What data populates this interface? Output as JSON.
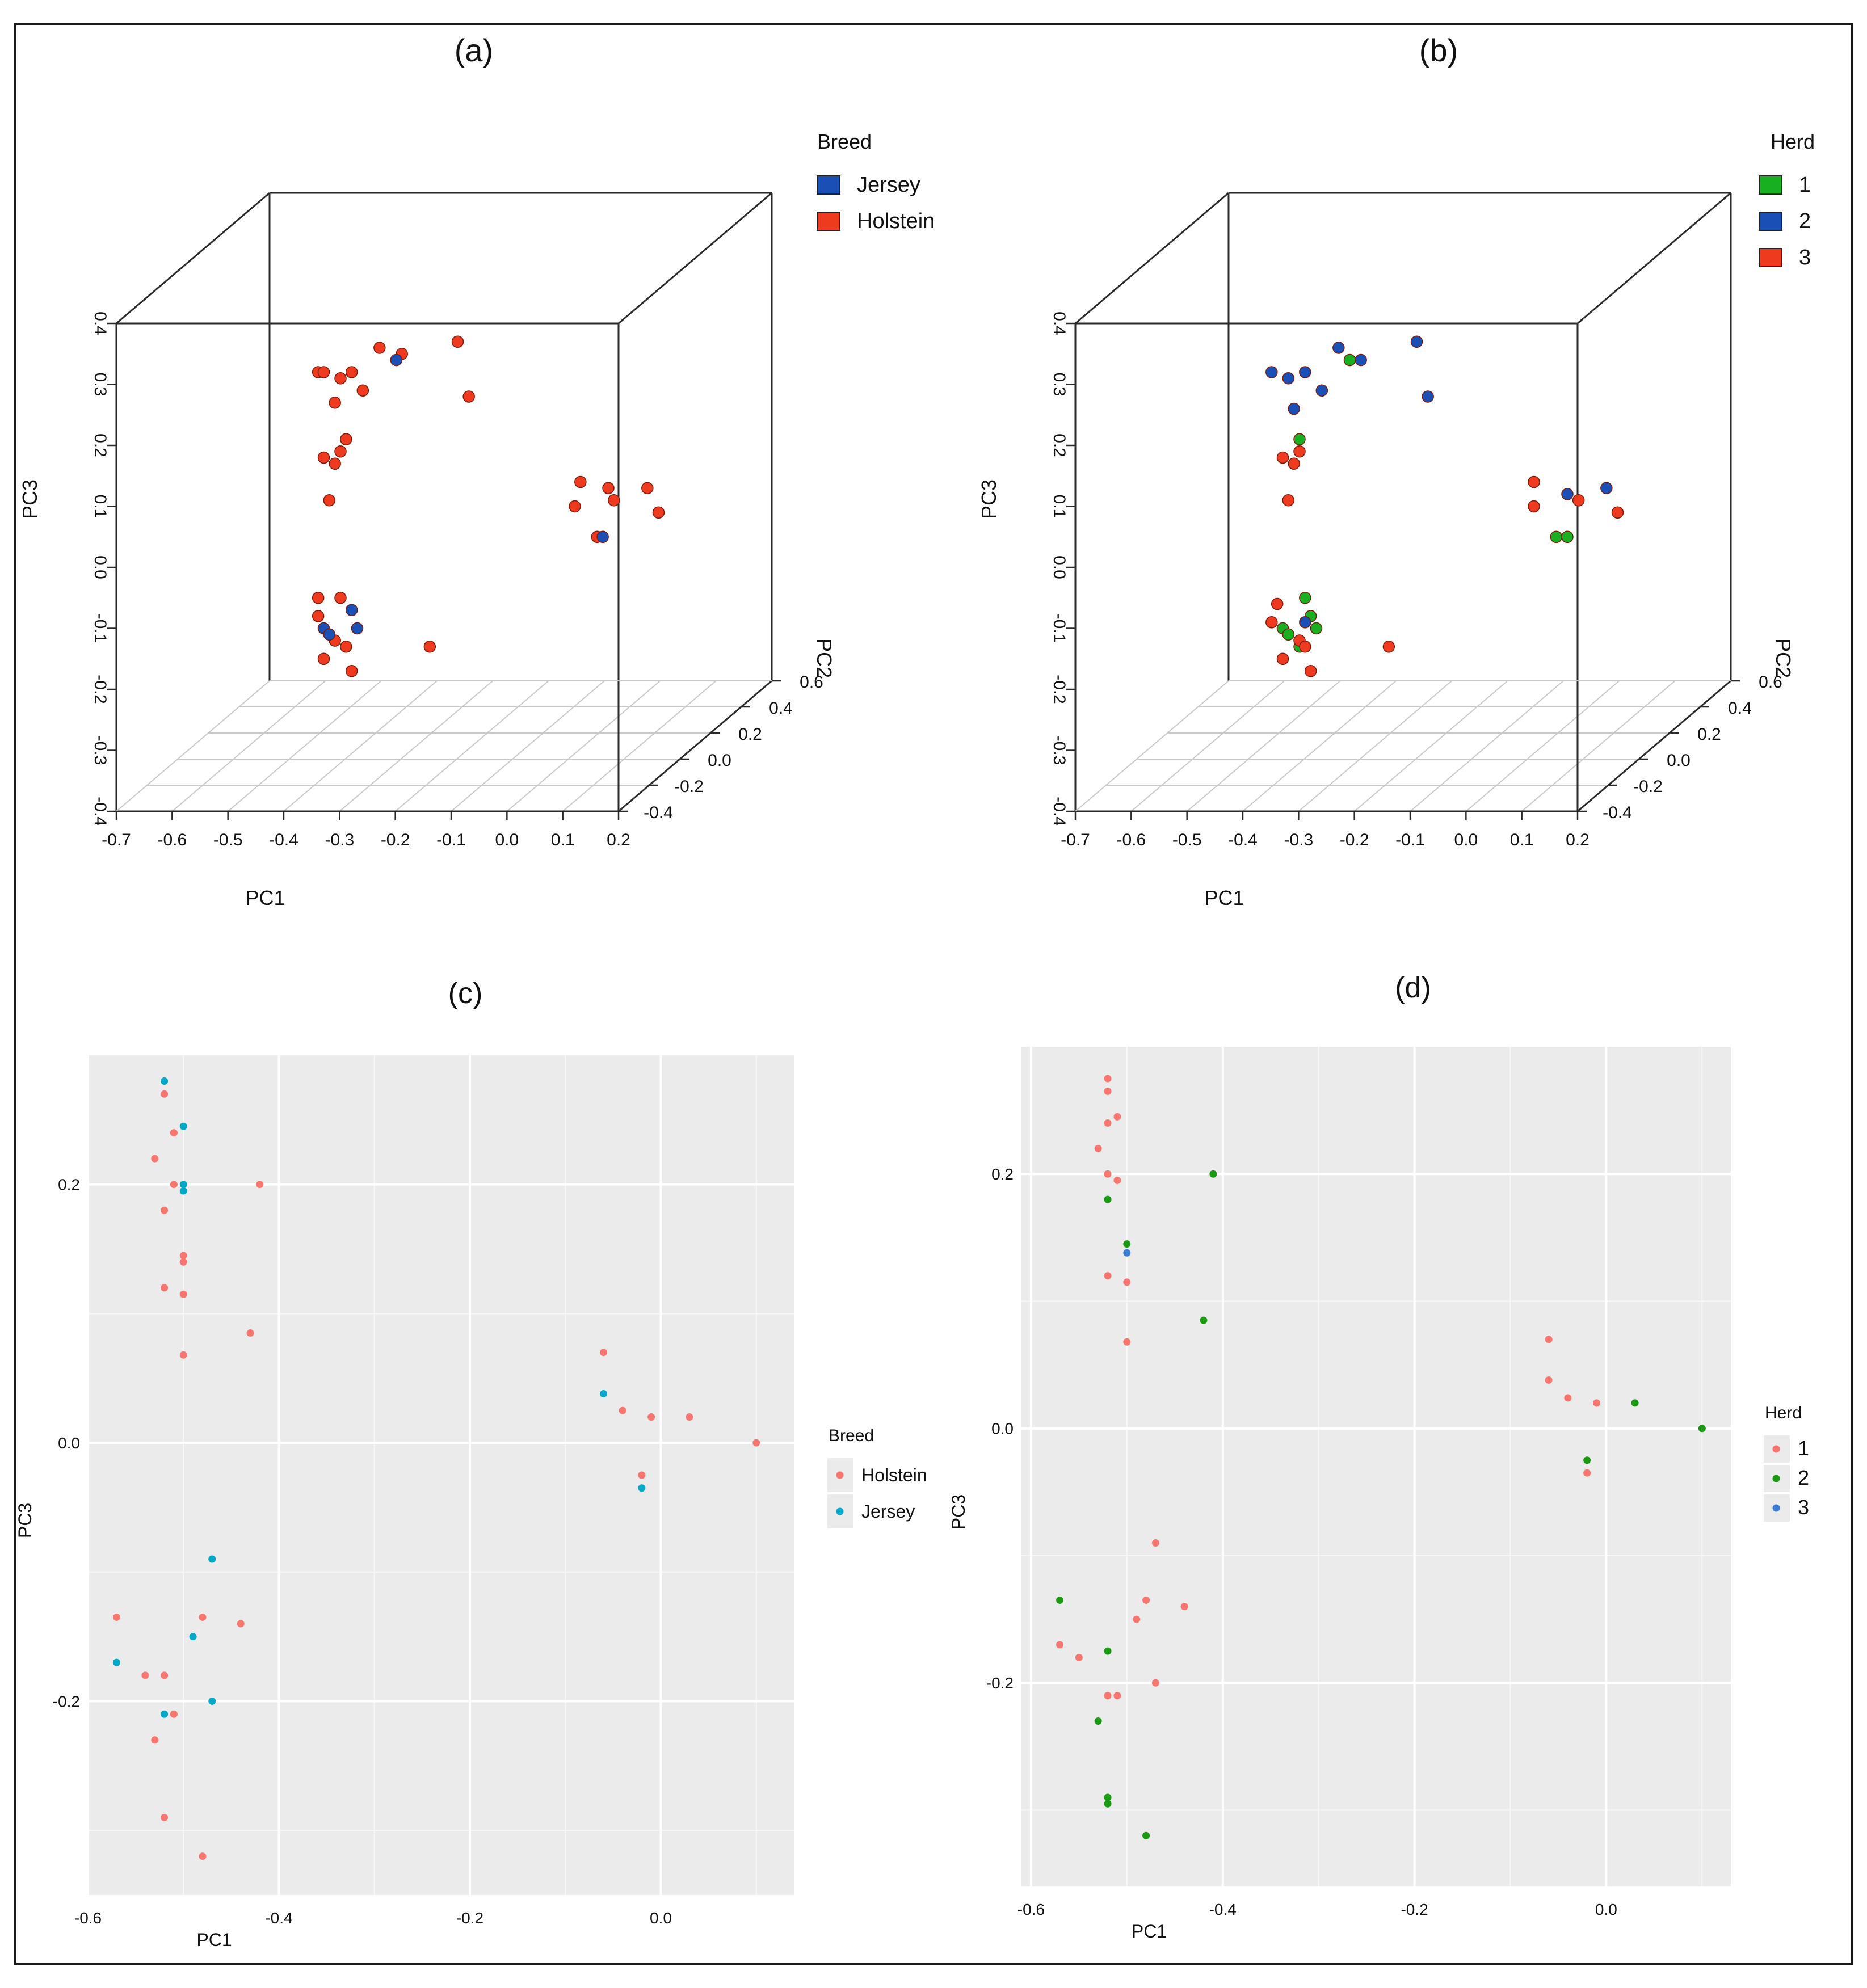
{
  "figure": {
    "colors": {
      "holstein_red": "#ee3a1f",
      "jersey_blue": "#1a4fb5",
      "herd_green": "#18b020",
      "gg_red": "#f8766d",
      "gg_teal": "#00a9c8",
      "gg_green": "#1a9a10",
      "gg_blue": "#3a7bd5",
      "gg_panel": "#ebebeb",
      "frame": "#1a1a1a"
    }
  },
  "chart_data": [
    {
      "panel": "(a)",
      "type": "scatter",
      "kind": "3d",
      "xlabel": "PC1",
      "ylabel": "PC3",
      "zlabel": "PC2",
      "xticks": [
        "-0.7",
        "-0.6",
        "-0.5",
        "-0.4",
        "-0.3",
        "-0.2",
        "-0.1",
        "0.0",
        "0.1",
        "0.2"
      ],
      "yticks": [
        "0.4",
        "0.3",
        "0.2",
        "0.1",
        "0.0",
        "-0.1",
        "-0.2",
        "-0.3",
        "-0.4"
      ],
      "zticks": [
        "0.6",
        "0.4",
        "0.2",
        "0.0",
        "-0.2",
        "-0.4"
      ],
      "xlim": [
        -0.7,
        0.2
      ],
      "ylim": [
        -0.4,
        0.4
      ],
      "legend_title": "Breed",
      "legend": [
        {
          "name": "Jersey",
          "color": "#1a4fb5"
        },
        {
          "name": "Holstein",
          "color": "#ee3a1f"
        }
      ],
      "series": [
        {
          "name": "Holstein",
          "color": "#ee3a1f",
          "points": [
            [
              -0.44,
              0.32
            ],
            [
              -0.43,
              0.32
            ],
            [
              -0.4,
              0.31
            ],
            [
              -0.38,
              0.32
            ],
            [
              -0.36,
              0.29
            ],
            [
              -0.41,
              0.27
            ],
            [
              -0.33,
              0.36
            ],
            [
              -0.29,
              0.35
            ],
            [
              -0.19,
              0.37
            ],
            [
              -0.17,
              0.28
            ],
            [
              -0.43,
              0.18
            ],
            [
              -0.41,
              0.17
            ],
            [
              -0.4,
              0.19
            ],
            [
              -0.39,
              0.21
            ],
            [
              -0.42,
              0.11
            ],
            [
              -0.44,
              -0.05
            ],
            [
              -0.44,
              -0.08
            ],
            [
              -0.4,
              -0.05
            ],
            [
              -0.41,
              -0.12
            ],
            [
              -0.39,
              -0.13
            ],
            [
              -0.43,
              -0.15
            ],
            [
              -0.38,
              -0.17
            ],
            [
              -0.24,
              -0.13
            ],
            [
              0.03,
              0.14
            ],
            [
              0.02,
              0.1
            ],
            [
              0.08,
              0.13
            ],
            [
              0.09,
              0.11
            ],
            [
              0.15,
              0.13
            ],
            [
              0.17,
              0.09
            ],
            [
              0.06,
              0.05
            ]
          ]
        },
        {
          "name": "Jersey",
          "color": "#1a4fb5",
          "points": [
            [
              -0.3,
              0.34
            ],
            [
              -0.43,
              -0.1
            ],
            [
              -0.42,
              -0.11
            ],
            [
              -0.38,
              -0.07
            ],
            [
              -0.37,
              -0.1
            ],
            [
              0.07,
              0.05
            ]
          ]
        }
      ]
    },
    {
      "panel": "(b)",
      "type": "scatter",
      "kind": "3d",
      "xlabel": "PC1",
      "ylabel": "PC3",
      "zlabel": "PC2",
      "xticks": [
        "-0.7",
        "-0.6",
        "-0.5",
        "-0.4",
        "-0.3",
        "-0.2",
        "-0.1",
        "0.0",
        "0.1",
        "0.2"
      ],
      "yticks": [
        "0.4",
        "0.3",
        "0.2",
        "0.1",
        "0.0",
        "-0.1",
        "-0.2",
        "-0.3",
        "-0.4"
      ],
      "zticks": [
        "0.6",
        "0.4",
        "0.2",
        "0.0",
        "-0.2",
        "-0.4"
      ],
      "xlim": [
        -0.7,
        0.2
      ],
      "ylim": [
        -0.4,
        0.4
      ],
      "legend_title": "Herd",
      "legend": [
        {
          "name": "1",
          "color": "#18b020"
        },
        {
          "name": "2",
          "color": "#1a4fb5"
        },
        {
          "name": "3",
          "color": "#ee3a1f"
        }
      ],
      "series": [
        {
          "name": "1",
          "color": "#18b020",
          "points": [
            [
              -0.31,
              0.34
            ],
            [
              -0.4,
              0.21
            ],
            [
              -0.39,
              -0.05
            ],
            [
              -0.38,
              -0.08
            ],
            [
              -0.43,
              -0.1
            ],
            [
              -0.42,
              -0.11
            ],
            [
              -0.37,
              -0.1
            ],
            [
              -0.4,
              -0.13
            ],
            [
              0.06,
              0.05
            ],
            [
              0.08,
              0.05
            ]
          ]
        },
        {
          "name": "2",
          "color": "#1a4fb5",
          "points": [
            [
              -0.45,
              0.32
            ],
            [
              -0.42,
              0.31
            ],
            [
              -0.39,
              0.32
            ],
            [
              -0.33,
              0.36
            ],
            [
              -0.29,
              0.34
            ],
            [
              -0.36,
              0.29
            ],
            [
              -0.41,
              0.26
            ],
            [
              -0.19,
              0.37
            ],
            [
              -0.17,
              0.28
            ],
            [
              -0.39,
              -0.09
            ],
            [
              0.08,
              0.12
            ],
            [
              0.15,
              0.13
            ]
          ]
        },
        {
          "name": "3",
          "color": "#ee3a1f",
          "points": [
            [
              -0.43,
              0.18
            ],
            [
              -0.41,
              0.17
            ],
            [
              -0.4,
              0.19
            ],
            [
              -0.42,
              0.11
            ],
            [
              -0.44,
              -0.06
            ],
            [
              -0.45,
              -0.09
            ],
            [
              -0.4,
              -0.12
            ],
            [
              -0.39,
              -0.13
            ],
            [
              -0.43,
              -0.15
            ],
            [
              -0.38,
              -0.17
            ],
            [
              -0.24,
              -0.13
            ],
            [
              0.02,
              0.14
            ],
            [
              0.02,
              0.1
            ],
            [
              0.1,
              0.11
            ],
            [
              0.17,
              0.09
            ]
          ]
        }
      ]
    },
    {
      "panel": "(c)",
      "type": "scatter",
      "xlabel": "PC1",
      "ylabel": "PC3",
      "xticks": [
        "-0.6",
        "-0.4",
        "-0.2",
        "0.0"
      ],
      "yticks": [
        "0.2",
        "0.0",
        "-0.2"
      ],
      "xlim": [
        -0.6,
        0.14
      ],
      "ylim": [
        -0.35,
        0.3
      ],
      "legend_title": "Breed",
      "legend": [
        {
          "name": "Holstein",
          "color": "#f8766d"
        },
        {
          "name": "Jersey",
          "color": "#00a9c8"
        }
      ],
      "series": [
        {
          "name": "Holstein",
          "color": "#f8766d",
          "points": [
            [
              -0.52,
              0.27
            ],
            [
              -0.51,
              0.24
            ],
            [
              -0.53,
              0.22
            ],
            [
              -0.51,
              0.2
            ],
            [
              -0.42,
              0.2
            ],
            [
              -0.52,
              0.18
            ],
            [
              -0.5,
              0.145
            ],
            [
              -0.5,
              0.14
            ],
            [
              -0.52,
              0.12
            ],
            [
              -0.5,
              0.115
            ],
            [
              -0.43,
              0.085
            ],
            [
              -0.5,
              0.068
            ],
            [
              -0.06,
              0.07
            ],
            [
              -0.04,
              0.025
            ],
            [
              -0.01,
              0.02
            ],
            [
              0.03,
              0.02
            ],
            [
              0.1,
              0.0
            ],
            [
              -0.02,
              -0.025
            ],
            [
              -0.57,
              -0.135
            ],
            [
              -0.48,
              -0.135
            ],
            [
              -0.44,
              -0.14
            ],
            [
              -0.54,
              -0.18
            ],
            [
              -0.52,
              -0.18
            ],
            [
              -0.51,
              -0.21
            ],
            [
              -0.53,
              -0.23
            ],
            [
              -0.52,
              -0.29
            ],
            [
              -0.48,
              -0.32
            ]
          ]
        },
        {
          "name": "Jersey",
          "color": "#00a9c8",
          "points": [
            [
              -0.52,
              0.28
            ],
            [
              -0.5,
              0.245
            ],
            [
              -0.5,
              0.2
            ],
            [
              -0.5,
              0.195
            ],
            [
              -0.06,
              0.038
            ],
            [
              -0.02,
              -0.035
            ],
            [
              -0.47,
              -0.09
            ],
            [
              -0.49,
              -0.15
            ],
            [
              -0.57,
              -0.17
            ],
            [
              -0.47,
              -0.2
            ],
            [
              -0.52,
              -0.21
            ]
          ]
        }
      ]
    },
    {
      "panel": "(d)",
      "type": "scatter",
      "xlabel": "PC1",
      "ylabel": "PC3",
      "xticks": [
        "-0.6",
        "-0.4",
        "-0.2",
        "0.0"
      ],
      "yticks": [
        "0.2",
        "0.0",
        "-0.2"
      ],
      "xlim": [
        -0.61,
        0.13
      ],
      "ylim": [
        -0.36,
        0.3
      ],
      "legend_title": "Herd",
      "legend": [
        {
          "name": "1",
          "color": "#f8766d"
        },
        {
          "name": "2",
          "color": "#1a9a10"
        },
        {
          "name": "3",
          "color": "#3a7bd5"
        }
      ],
      "series": [
        {
          "name": "1",
          "color": "#f8766d",
          "points": [
            [
              -0.52,
              0.275
            ],
            [
              -0.52,
              0.265
            ],
            [
              -0.51,
              0.245
            ],
            [
              -0.52,
              0.24
            ],
            [
              -0.53,
              0.22
            ],
            [
              -0.52,
              0.2
            ],
            [
              -0.51,
              0.195
            ],
            [
              -0.52,
              0.12
            ],
            [
              -0.5,
              0.115
            ],
            [
              -0.5,
              0.068
            ],
            [
              -0.06,
              0.07
            ],
            [
              -0.06,
              0.038
            ],
            [
              -0.04,
              0.024
            ],
            [
              -0.01,
              0.02
            ],
            [
              -0.02,
              -0.035
            ],
            [
              -0.47,
              -0.09
            ],
            [
              -0.48,
              -0.135
            ],
            [
              -0.44,
              -0.14
            ],
            [
              -0.49,
              -0.15
            ],
            [
              -0.57,
              -0.17
            ],
            [
              -0.55,
              -0.18
            ],
            [
              -0.47,
              -0.2
            ],
            [
              -0.52,
              -0.21
            ],
            [
              -0.51,
              -0.21
            ]
          ]
        },
        {
          "name": "2",
          "color": "#1a9a10",
          "points": [
            [
              -0.41,
              0.2
            ],
            [
              -0.52,
              0.18
            ],
            [
              -0.5,
              0.145
            ],
            [
              -0.42,
              0.085
            ],
            [
              0.03,
              0.02
            ],
            [
              0.1,
              0.0
            ],
            [
              -0.02,
              -0.025
            ],
            [
              -0.57,
              -0.135
            ],
            [
              -0.52,
              -0.175
            ],
            [
              -0.53,
              -0.23
            ],
            [
              -0.52,
              -0.29
            ],
            [
              -0.52,
              -0.295
            ],
            [
              -0.48,
              -0.32
            ]
          ]
        },
        {
          "name": "3",
          "color": "#3a7bd5",
          "points": [
            [
              -0.5,
              0.138
            ]
          ]
        }
      ]
    }
  ]
}
